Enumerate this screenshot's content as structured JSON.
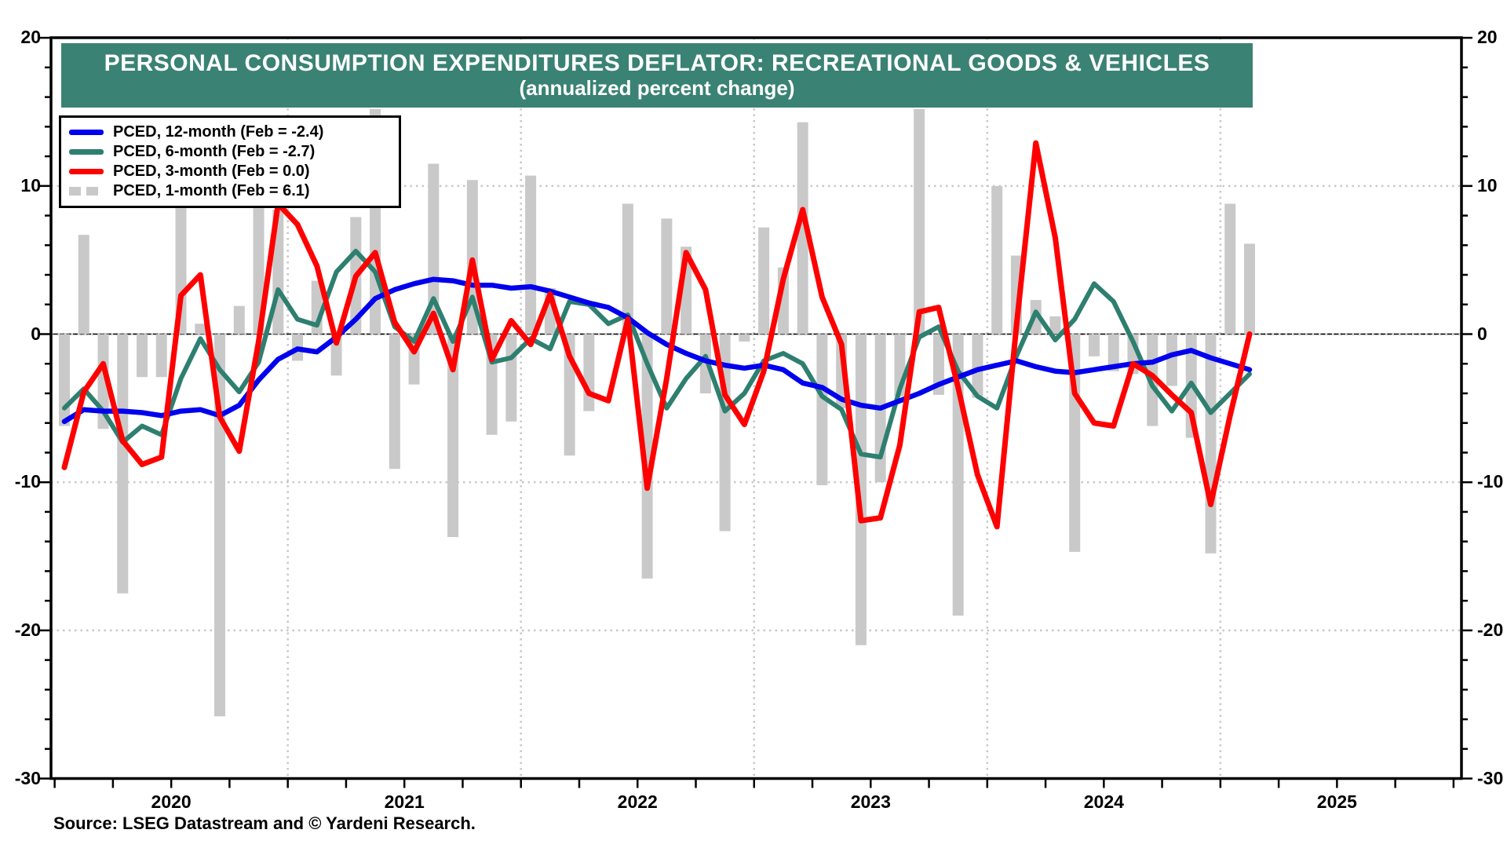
{
  "title": {
    "line1": "PERSONAL CONSUMPTION EXPENDITURES DEFLATOR: RECREATIONAL GOODS & VEHICLES",
    "line2": "(annualized percent change)"
  },
  "source": {
    "text": "Source: LSEG Datastream and © Yardeni Research."
  },
  "legend": {
    "items": [
      {
        "label": "PCED, 12-month (Feb = -2.4)",
        "series": "pced_12mo",
        "swatch": "line",
        "color": "#0000ee"
      },
      {
        "label": "PCED, 6-month (Feb = -2.7)",
        "series": "pced_6mo",
        "swatch": "line",
        "color": "#2e7f70"
      },
      {
        "label": "PCED, 3-month (Feb = 0.0)",
        "series": "pced_3mo",
        "swatch": "line",
        "color": "#ff0000"
      },
      {
        "label": "PCED, 1-month (Feb = 6.1)",
        "series": "pced_1mo",
        "swatch": "bars",
        "color": "#c9c9c9"
      }
    ]
  },
  "colors": {
    "banner": "#3a8274",
    "bar": "#c9c9c9",
    "line_12mo": "#0000ee",
    "line_6mo": "#2e7f70",
    "line_3mo": "#ff0000",
    "grid_dotted": "#c8c8c8",
    "axis": "#000000"
  },
  "axes": {
    "y_ticks": [
      20,
      10,
      0,
      -10,
      -20,
      -30
    ],
    "y_minor_step": 2,
    "y_gridlines_dotted": [
      10,
      0,
      -10,
      -20
    ],
    "y_range": [
      -30,
      20
    ],
    "x_year_labels": [
      "2020",
      "2021",
      "2022",
      "2023",
      "2024",
      "2025"
    ],
    "x_year_gridlines": [
      "2021",
      "2022",
      "2023",
      "2024",
      "2025"
    ],
    "x_minor_tick_months": 3
  },
  "chart_data": {
    "type": "combo-bar-line",
    "x_start": "Jan 2020",
    "x_end_data": "Feb 2025",
    "x_end_axis": "Dec 2025",
    "categories": [
      "Jan 2020",
      "Feb 2020",
      "Mar 2020",
      "Apr 2020",
      "May 2020",
      "Jun 2020",
      "Jul 2020",
      "Aug 2020",
      "Sep 2020",
      "Oct 2020",
      "Nov 2020",
      "Dec 2020",
      "Jan 2021",
      "Feb 2021",
      "Mar 2021",
      "Apr 2021",
      "May 2021",
      "Jun 2021",
      "Jul 2021",
      "Aug 2021",
      "Sep 2021",
      "Oct 2021",
      "Nov 2021",
      "Dec 2021",
      "Jan 2022",
      "Feb 2022",
      "Mar 2022",
      "Apr 2022",
      "May 2022",
      "Jun 2022",
      "Jul 2022",
      "Aug 2022",
      "Sep 2022",
      "Oct 2022",
      "Nov 2022",
      "Dec 2022",
      "Jan 2023",
      "Feb 2023",
      "Mar 2023",
      "Apr 2023",
      "May 2023",
      "Jun 2023",
      "Jul 2023",
      "Aug 2023",
      "Sep 2023",
      "Oct 2023",
      "Nov 2023",
      "Dec 2023",
      "Jan 2024",
      "Feb 2024",
      "Mar 2024",
      "Apr 2024",
      "May 2024",
      "Jun 2024",
      "Jul 2024",
      "Aug 2024",
      "Sep 2024",
      "Oct 2024",
      "Nov 2024",
      "Dec 2024",
      "Jan 2025",
      "Feb 2025"
    ],
    "series": [
      {
        "name": "PCED, 1-month",
        "type": "bar",
        "color": "#c9c9c9",
        "values": [
          -6.2,
          6.7,
          -6.4,
          -17.5,
          -2.9,
          -2.9,
          8.5,
          0.7,
          -25.8,
          1.9,
          8.5,
          8.4,
          -1.8,
          3.6,
          -2.8,
          7.9,
          15.2,
          -9.1,
          -3.4,
          11.5,
          -13.7,
          10.4,
          -6.8,
          -5.9,
          10.7,
          3.1,
          -8.2,
          -5.2,
          0.0,
          8.8,
          -16.5,
          7.8,
          5.9,
          -4.0,
          -13.3,
          -0.5,
          7.2,
          4.5,
          14.3,
          -10.2,
          -5.0,
          -21.0,
          -10.0,
          -4.2,
          15.2,
          -4.1,
          -19.0,
          -4.3,
          10.0,
          5.3,
          2.3,
          1.2,
          -14.7,
          -1.5,
          -2.5,
          -2.7,
          -6.2,
          -3.5,
          -7.0,
          -14.8,
          8.8,
          6.1
        ]
      },
      {
        "name": "PCED, 6-month",
        "type": "line",
        "color": "#2e7f70",
        "values": [
          -5.0,
          -3.7,
          -5.2,
          -7.3,
          -6.2,
          -6.8,
          -3.0,
          -0.3,
          -2.4,
          -3.9,
          -1.9,
          3.0,
          1.0,
          0.6,
          4.2,
          5.6,
          4.2,
          0.5,
          -0.5,
          2.4,
          -0.5,
          2.5,
          -1.9,
          -1.6,
          -0.3,
          -1.0,
          2.2,
          2.0,
          0.7,
          1.3,
          -2.0,
          -5.0,
          -3.0,
          -1.5,
          -5.2,
          -4.0,
          -1.8,
          -1.3,
          -2.0,
          -4.2,
          -5.1,
          -8.1,
          -8.3,
          -3.7,
          -0.2,
          0.5,
          -2.5,
          -4.2,
          -5.0,
          -1.5,
          1.5,
          -0.4,
          1.0,
          3.4,
          2.2,
          -0.5,
          -3.5,
          -5.2,
          -3.3,
          -5.3,
          -4.0,
          -2.7
        ]
      },
      {
        "name": "PCED, 12-month",
        "type": "line",
        "color": "#0000ee",
        "values": [
          -5.9,
          -5.1,
          -5.2,
          -5.2,
          -5.3,
          -5.5,
          -5.2,
          -5.1,
          -5.5,
          -4.8,
          -3.1,
          -1.7,
          -1.0,
          -1.2,
          -0.2,
          1.0,
          2.4,
          3.0,
          3.4,
          3.7,
          3.6,
          3.3,
          3.3,
          3.1,
          3.2,
          2.9,
          2.5,
          2.1,
          1.8,
          1.1,
          0.1,
          -0.7,
          -1.3,
          -1.8,
          -2.1,
          -2.3,
          -2.1,
          -2.4,
          -3.3,
          -3.6,
          -4.4,
          -4.8,
          -5.0,
          -4.5,
          -4.0,
          -3.4,
          -2.9,
          -2.4,
          -2.1,
          -1.8,
          -2.2,
          -2.5,
          -2.6,
          -2.4,
          -2.2,
          -2.0,
          -1.9,
          -1.4,
          -1.1,
          -1.6,
          -2.0,
          -2.4
        ]
      },
      {
        "name": "PCED, 3-month",
        "type": "line",
        "color": "#ff0000",
        "values": [
          -9.0,
          -3.9,
          -2.0,
          -7.2,
          -8.8,
          -8.3,
          2.6,
          4.0,
          -5.6,
          -7.9,
          -0.5,
          8.8,
          7.4,
          4.6,
          -0.6,
          3.9,
          5.5,
          0.8,
          -1.2,
          1.4,
          -2.4,
          5.0,
          -1.7,
          0.9,
          -0.7,
          2.7,
          -1.5,
          -4.0,
          -4.5,
          1.0,
          -10.4,
          -3.0,
          5.5,
          3.0,
          -4.1,
          -6.1,
          -2.5,
          3.7,
          8.4,
          2.5,
          -0.7,
          -12.6,
          -12.4,
          -7.5,
          1.5,
          1.8,
          -3.6,
          -9.5,
          -13.0,
          0.5,
          12.9,
          6.5,
          -4.0,
          -6.0,
          -6.2,
          -2.0,
          -2.8,
          -4.1,
          -5.3,
          -11.5,
          -5.5,
          0.0
        ]
      }
    ],
    "ylim": [
      -30,
      20
    ],
    "legend_position": "top-left",
    "grid": "dotted horizontal at 10/0/-10/-20, dotted vertical at year starts"
  }
}
